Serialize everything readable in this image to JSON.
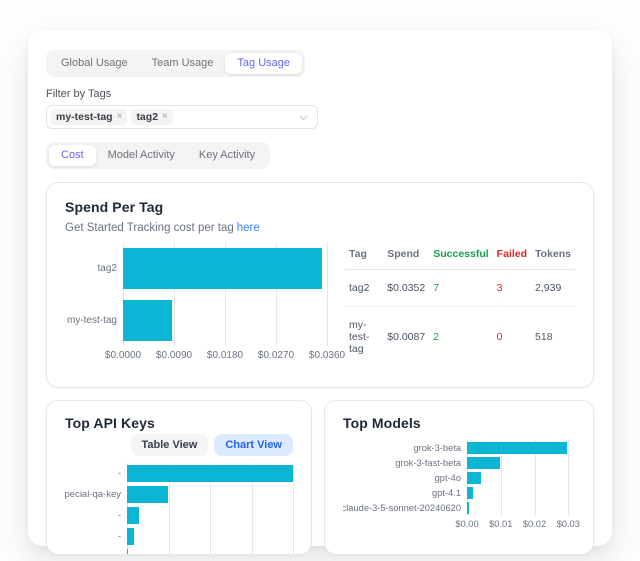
{
  "colors": {
    "bar_cyan": "#0bb6d4",
    "accent_purple": "#6366f1",
    "link_blue": "#3b82f6",
    "success_green": "#16a34a",
    "fail_red": "#dc2626"
  },
  "primary_tabs": {
    "items": [
      "Global Usage",
      "Team Usage",
      "Tag Usage"
    ],
    "active": "Tag Usage"
  },
  "filter": {
    "label": "Filter by Tags",
    "chips": [
      "my-test-tag",
      "tag2"
    ],
    "remove_glyph": "×"
  },
  "secondary_tabs": {
    "items": [
      "Cost",
      "Model Activity",
      "Key Activity"
    ],
    "active": "Cost"
  },
  "spend_card": {
    "title": "Spend Per Tag",
    "subtitle_text": "Get Started Tracking cost per tag",
    "subtitle_link_text": "here",
    "chart_data": {
      "type": "bar",
      "orientation": "horizontal",
      "categories": [
        "tag2",
        "my-test-tag"
      ],
      "values": [
        0.0352,
        0.0087
      ],
      "xlim": [
        0,
        0.036
      ],
      "ticks": [
        {
          "value": 0,
          "label": "$0.0000"
        },
        {
          "value": 0.009,
          "label": "$0.0090"
        },
        {
          "value": 0.018,
          "label": "$0.0180"
        },
        {
          "value": 0.027,
          "label": "$0.0270"
        },
        {
          "value": 0.036,
          "label": "$0.0360"
        }
      ],
      "grid": true,
      "bar_color": "#0bb6d4"
    },
    "table": {
      "headers": [
        "Tag",
        "Spend",
        "Successful",
        "Failed",
        "Tokens"
      ],
      "header_colors": [
        "#6b7280",
        "#6b7280",
        "#16a34a",
        "#dc2626",
        "#6b7280"
      ],
      "cell_colors": [
        null,
        null,
        "#16a34a",
        "#dc2626",
        null
      ],
      "rows": [
        [
          "tag2",
          "$0.0352",
          "7",
          "3",
          "2,939"
        ],
        [
          "my-test-tag",
          "$0.0087",
          "2",
          "0",
          "518"
        ]
      ]
    }
  },
  "api_keys_card": {
    "title": "Top API Keys",
    "view_toggle": {
      "options": [
        "Table View",
        "Chart View"
      ],
      "active": "Chart View"
    },
    "chart_data": {
      "type": "bar",
      "orientation": "horizontal",
      "categories": [
        "-",
        "pecial-qa-key",
        "-",
        "-",
        "-"
      ],
      "values_pct_of_max": [
        100,
        24.5,
        7.5,
        4.5,
        0.6
      ],
      "gridline_pcts": [
        0,
        25,
        50,
        75,
        100
      ],
      "x_axis_labels_visible": false,
      "grid": true,
      "bar_color": "#0bb6d4"
    }
  },
  "models_card": {
    "title": "Top Models",
    "chart_data": {
      "type": "bar",
      "orientation": "horizontal",
      "categories": [
        "grok-3-beta",
        "grok-3-fast-beta",
        "gpt-4o",
        "gpt-4.1",
        "claude-3-5-sonnet-20240620"
      ],
      "values": [
        0.0295,
        0.0098,
        0.004,
        0.0018,
        0.0006
      ],
      "xlim": [
        0,
        0.032
      ],
      "ticks": [
        {
          "value": 0,
          "label": "$0.00"
        },
        {
          "value": 0.01,
          "label": "$0.01"
        },
        {
          "value": 0.02,
          "label": "$0.02"
        },
        {
          "value": 0.03,
          "label": "$0.03"
        }
      ],
      "grid": true,
      "bar_color": "#0bb6d4"
    }
  }
}
